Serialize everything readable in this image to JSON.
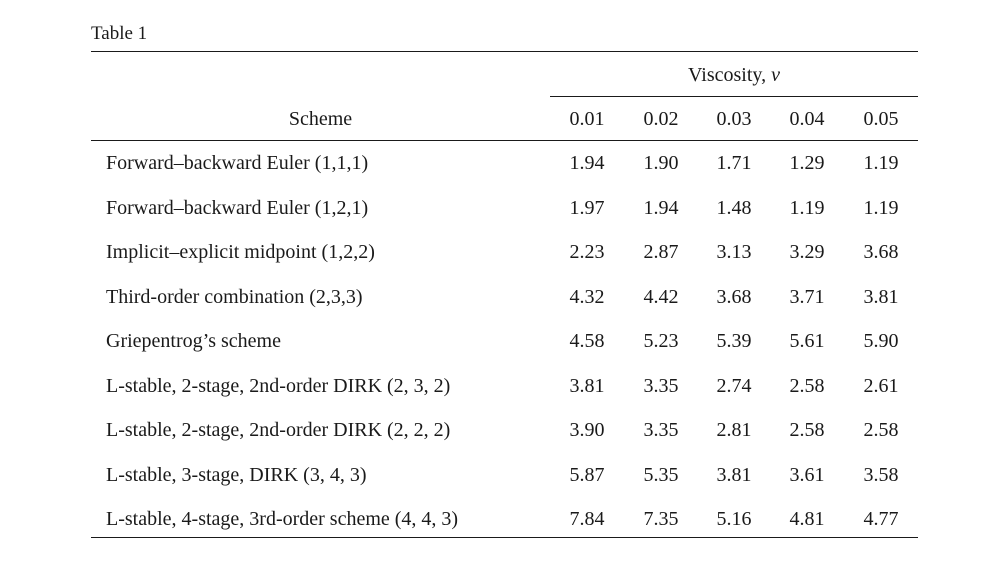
{
  "table": {
    "caption": "Table 1",
    "group_header": "Viscosity,",
    "group_symbol": "ν",
    "scheme_header": "Scheme",
    "columns": [
      "0.01",
      "0.02",
      "0.03",
      "0.04",
      "0.05"
    ],
    "rows": [
      {
        "scheme": "Forward–backward Euler (1,1,1)",
        "values": [
          "1.94",
          "1.90",
          "1.71",
          "1.29",
          "1.19"
        ]
      },
      {
        "scheme": "Forward–backward Euler (1,2,1)",
        "values": [
          "1.97",
          "1.94",
          "1.48",
          "1.19",
          "1.19"
        ]
      },
      {
        "scheme": "Implicit–explicit midpoint (1,2,2)",
        "values": [
          "2.23",
          "2.87",
          "3.13",
          "3.29",
          "3.68"
        ]
      },
      {
        "scheme": "Third-order combination (2,3,3)",
        "values": [
          "4.32",
          "4.42",
          "3.68",
          "3.71",
          "3.81"
        ]
      },
      {
        "scheme": "Griepentrog’s scheme",
        "values": [
          "4.58",
          "5.23",
          "5.39",
          "5.61",
          "5.90"
        ]
      },
      {
        "scheme": "L-stable, 2-stage, 2nd-order DIRK (2, 3, 2)",
        "values": [
          "3.81",
          "3.35",
          "2.74",
          "2.58",
          "2.61"
        ]
      },
      {
        "scheme": "L-stable, 2-stage, 2nd-order DIRK (2, 2, 2)",
        "values": [
          "3.90",
          "3.35",
          "2.81",
          "2.58",
          "2.58"
        ]
      },
      {
        "scheme": "L-stable, 3-stage, DIRK (3, 4, 3)",
        "values": [
          "5.87",
          "5.35",
          "3.81",
          "3.61",
          "3.58"
        ]
      },
      {
        "scheme": "L-stable, 4-stage, 3rd-order scheme (4, 4, 3)",
        "values": [
          "7.84",
          "7.35",
          "5.16",
          "4.81",
          "4.77"
        ]
      }
    ]
  }
}
